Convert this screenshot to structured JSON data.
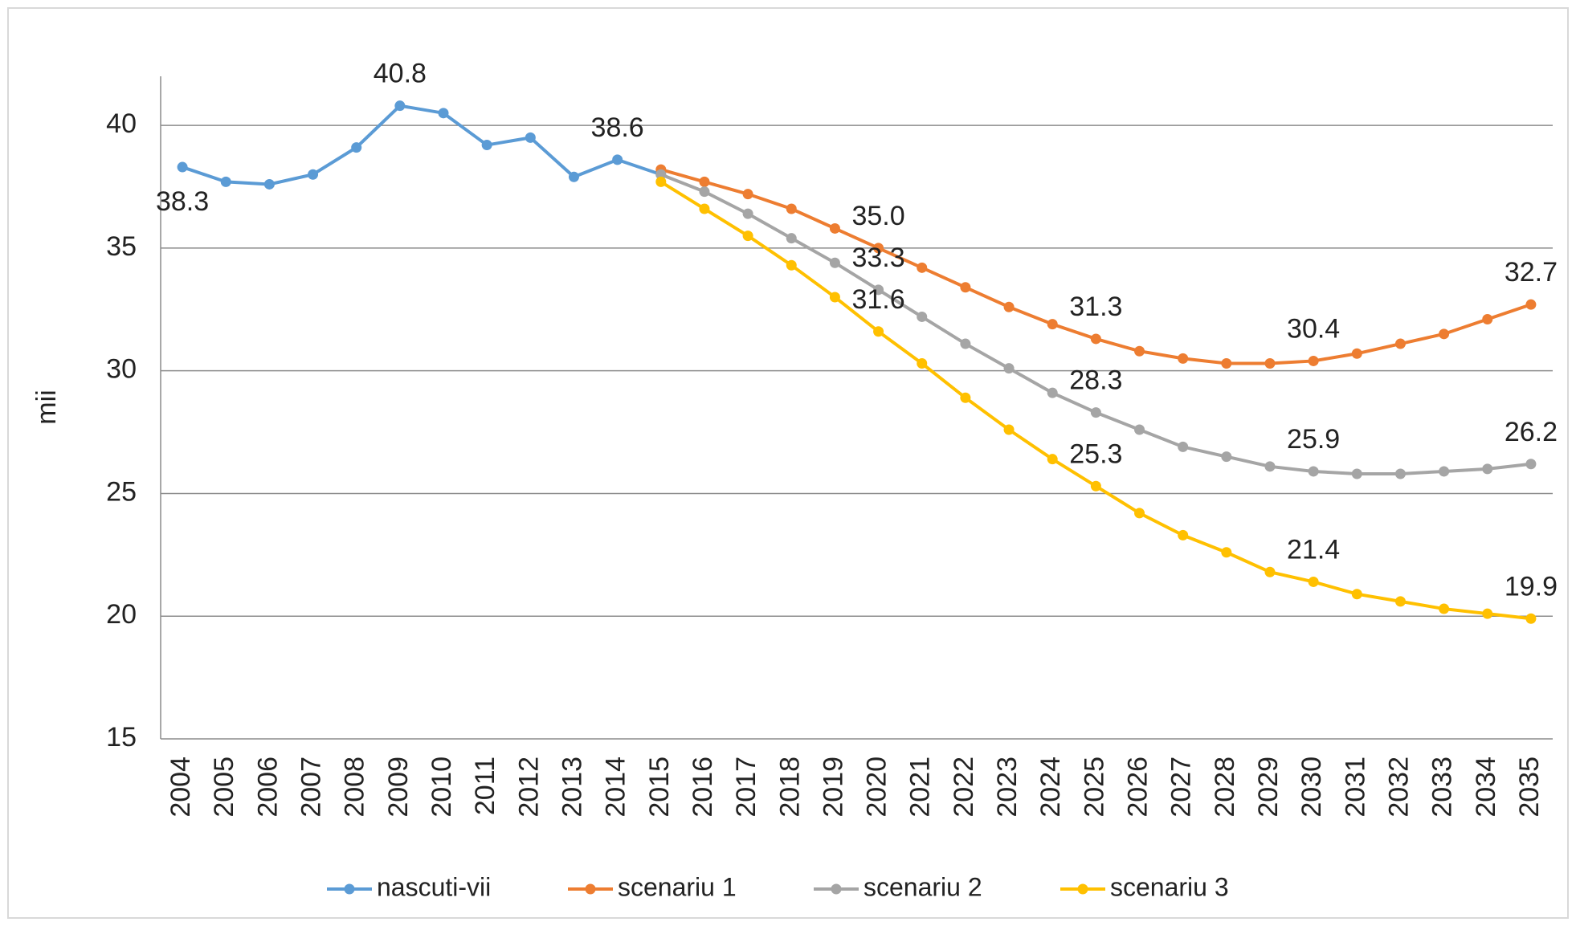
{
  "chart_data": {
    "type": "line",
    "y_label": "mii",
    "categories": [
      "2004",
      "2005",
      "2006",
      "2007",
      "2008",
      "2009",
      "2010",
      "2011",
      "2012",
      "2013",
      "2014",
      "2015",
      "2016",
      "2017",
      "2018",
      "2019",
      "2020",
      "2021",
      "2022",
      "2023",
      "2024",
      "2025",
      "2026",
      "2027",
      "2028",
      "2029",
      "2030",
      "2031",
      "2032",
      "2033",
      "2034",
      "2035"
    ],
    "series": [
      {
        "name": "nascuti-vii",
        "color": "#5b9bd5",
        "values": [
          38.3,
          37.7,
          37.6,
          38.0,
          39.1,
          40.8,
          40.5,
          39.2,
          39.5,
          37.9,
          38.6,
          38.0,
          null,
          null,
          null,
          null,
          null,
          null,
          null,
          null,
          null,
          null,
          null,
          null,
          null,
          null,
          null,
          null,
          null,
          null,
          null,
          null
        ],
        "value_labels": [
          "38.3",
          null,
          null,
          null,
          null,
          "40.8",
          null,
          null,
          null,
          null,
          "38.6",
          null,
          null,
          null,
          null,
          null,
          null,
          null,
          null,
          null,
          null,
          null,
          null,
          null,
          null,
          null,
          null,
          null,
          null,
          null,
          null,
          null
        ]
      },
      {
        "name": "scenariu 1",
        "color": "#ed7d31",
        "values": [
          null,
          null,
          null,
          null,
          null,
          null,
          null,
          null,
          null,
          null,
          null,
          38.2,
          37.7,
          37.2,
          36.6,
          35.8,
          35.0,
          34.2,
          33.4,
          32.6,
          31.9,
          31.3,
          30.8,
          30.5,
          30.3,
          30.3,
          30.4,
          30.7,
          31.1,
          31.5,
          32.1,
          32.7
        ],
        "value_labels": [
          null,
          null,
          null,
          null,
          null,
          null,
          null,
          null,
          null,
          null,
          null,
          null,
          null,
          null,
          null,
          null,
          "35.0",
          null,
          null,
          null,
          null,
          "31.3",
          null,
          null,
          null,
          null,
          "30.4",
          null,
          null,
          null,
          null,
          "32.7"
        ]
      },
      {
        "name": "scenariu 2",
        "color": "#a5a5a5",
        "values": [
          null,
          null,
          null,
          null,
          null,
          null,
          null,
          null,
          null,
          null,
          null,
          38.0,
          37.3,
          36.4,
          35.4,
          34.4,
          33.3,
          32.2,
          31.1,
          30.1,
          29.1,
          28.3,
          27.6,
          26.9,
          26.5,
          26.1,
          25.9,
          25.8,
          25.8,
          25.9,
          26.0,
          26.2
        ],
        "value_labels": [
          null,
          null,
          null,
          null,
          null,
          null,
          null,
          null,
          null,
          null,
          null,
          null,
          null,
          null,
          null,
          null,
          "33.3",
          null,
          null,
          null,
          null,
          "28.3",
          null,
          null,
          null,
          null,
          "25.9",
          null,
          null,
          null,
          null,
          "26.2"
        ]
      },
      {
        "name": "scenariu 3",
        "color": "#ffc000",
        "values": [
          null,
          null,
          null,
          null,
          null,
          null,
          null,
          null,
          null,
          null,
          null,
          37.7,
          36.6,
          35.5,
          34.3,
          33.0,
          31.6,
          30.3,
          28.9,
          27.6,
          26.4,
          25.3,
          24.2,
          23.3,
          22.6,
          21.8,
          21.4,
          20.9,
          20.6,
          20.3,
          20.1,
          19.9
        ],
        "value_labels": [
          null,
          null,
          null,
          null,
          null,
          null,
          null,
          null,
          null,
          null,
          null,
          null,
          null,
          null,
          null,
          null,
          "31.6",
          null,
          null,
          null,
          null,
          "25.3",
          null,
          null,
          null,
          null,
          "21.4",
          null,
          null,
          null,
          null,
          "19.9"
        ]
      }
    ],
    "ylim": [
      15,
      42
    ],
    "yticks": [
      15,
      20,
      25,
      30,
      35,
      40
    ],
    "grid": true,
    "legend": "bottom"
  }
}
